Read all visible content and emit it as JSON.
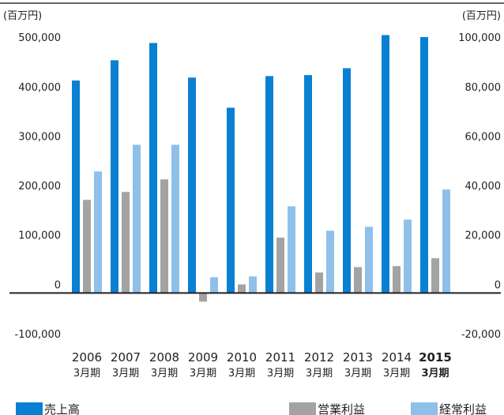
{
  "chart_data": {
    "type": "bar",
    "y_unit": "(百万円)",
    "y2_unit": "(百万円)",
    "categories": [
      "2006",
      "2007",
      "2008",
      "2009",
      "2010",
      "2011",
      "2012",
      "2013",
      "2014",
      "2015"
    ],
    "category_suffix": "3月期",
    "highlight_index": 9,
    "series": [
      {
        "name": "売上高",
        "color": "#0a80d2",
        "values": [
          430000,
          471000,
          506000,
          436000,
          375000,
          439000,
          441000,
          455000,
          522000,
          518000
        ]
      },
      {
        "name": "営業利益",
        "color": "#a3a3a3",
        "axis": "y2",
        "values": [
          37700,
          40900,
          46000,
          -3500,
          3500,
          22400,
          8300,
          10500,
          10900,
          14100
        ]
      },
      {
        "name": "経常利益",
        "color": "#8ec0ea",
        "axis": "y2",
        "values": [
          49200,
          60000,
          60000,
          6400,
          6700,
          35100,
          25200,
          26800,
          29700,
          41900
        ]
      }
    ],
    "ylim": [
      -100000,
      585000
    ],
    "yticks": [
      {
        "value": -100000,
        "label": "-100,000"
      },
      0,
      {
        "value": 100000,
        "label": "100,000"
      },
      {
        "value": 200000,
        "label": "200,000"
      },
      {
        "value": 300000,
        "label": "300,000"
      },
      {
        "value": 400000,
        "label": "400,000"
      },
      {
        "value": 500000,
        "label": "500,000"
      }
    ],
    "y2lim": [
      -20000,
      117000
    ],
    "y2ticks": [
      {
        "value": -20000,
        "label": "-20,000"
      },
      0,
      {
        "value": 20000,
        "label": "20,000"
      },
      {
        "value": 40000,
        "label": "40,000"
      },
      {
        "value": 60000,
        "label": "60,000"
      },
      {
        "value": 80000,
        "label": "80,000"
      },
      {
        "value": 100000,
        "label": "100,000"
      }
    ],
    "grid": false
  }
}
